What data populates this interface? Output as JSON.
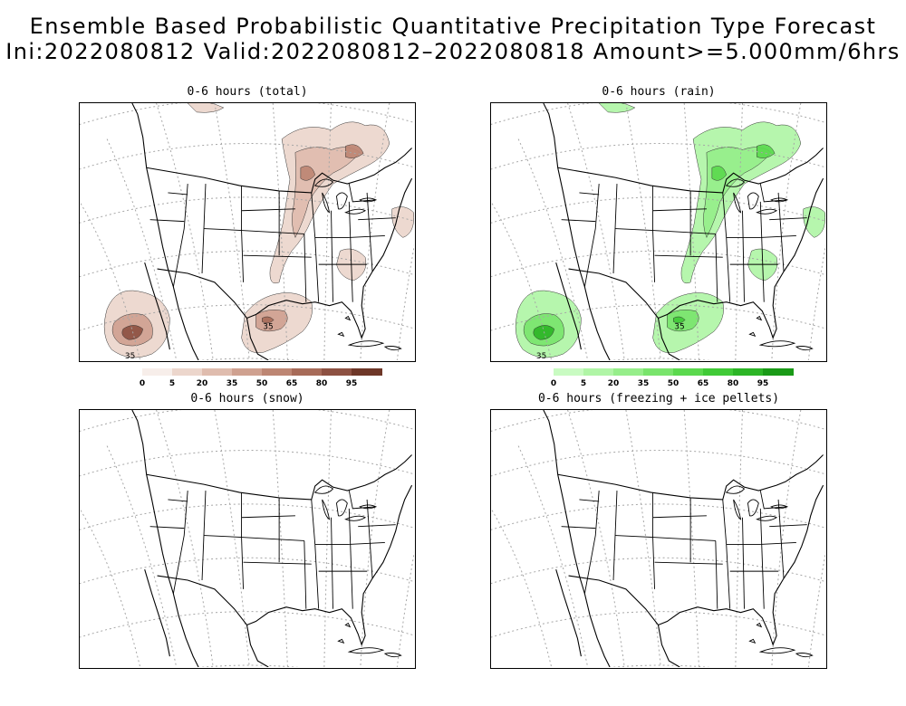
{
  "header": {
    "title_line1": "Ensemble Based Probabilistic Quantitative Precipitation Type Forecast",
    "title_line2": "Ini:2022080812 Valid:2022080812–2022080818 Amount>=5.000mm/6hrs"
  },
  "panels": [
    {
      "id": "total",
      "title": "0-6 hours (total)",
      "has_precip": true,
      "contour_label": "35"
    },
    {
      "id": "rain",
      "title": "0-6 hours (rain)",
      "has_precip": true,
      "contour_label": "35"
    },
    {
      "id": "snow",
      "title": "0-6 hours (snow)",
      "has_precip": false
    },
    {
      "id": "freeze",
      "title": "0-6 hours (freezing + ice pellets)",
      "has_precip": false
    }
  ],
  "colorbars": {
    "total": {
      "labels": [
        "0",
        "5",
        "20",
        "35",
        "50",
        "65",
        "80",
        "95"
      ],
      "colors": [
        "#f7eeea",
        "#ecd6cc",
        "#dfbcae",
        "#cfa190",
        "#bd8673",
        "#a76b59",
        "#8d5142",
        "#6e3728"
      ]
    },
    "rain": {
      "labels": [
        "0",
        "5",
        "20",
        "35",
        "50",
        "65",
        "80",
        "95"
      ],
      "colors": [
        "#c9fbc2",
        "#b0f5a6",
        "#96ee8a",
        "#79e46c",
        "#5bd94e",
        "#40ca37",
        "#2cb526",
        "#1a9a17"
      ]
    }
  }
}
